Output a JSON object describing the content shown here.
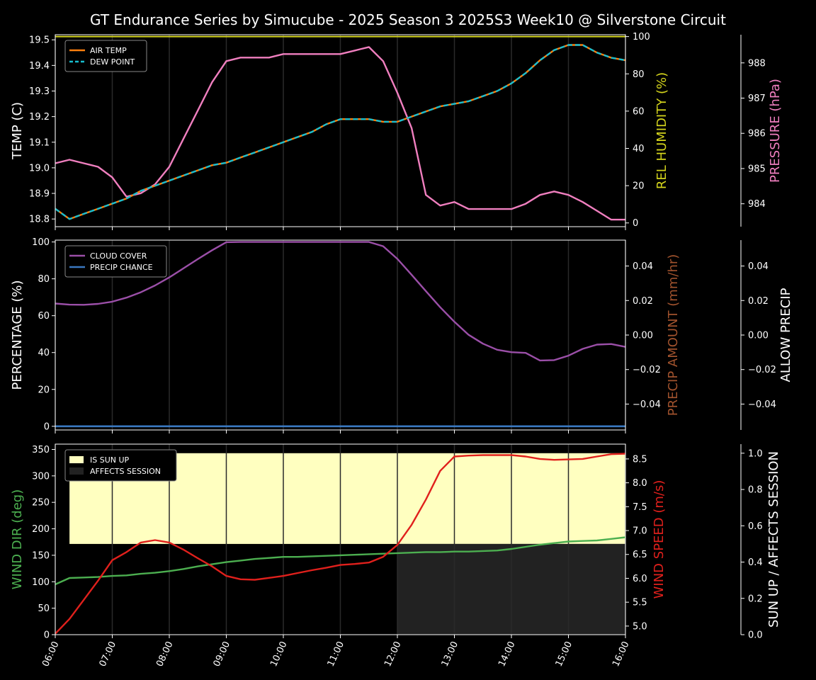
{
  "title": "GT Endurance Series by Simucube - 2025 Season 3 2025S3 Week10 @ Silverstone Circuit",
  "colors": {
    "background": "#000000",
    "foreground": "#ffffff",
    "air_temp": "#ff7f0e",
    "dew_point": "#17becf",
    "humidity": "#d4d41c",
    "pressure": "#f07fbf",
    "cloud": "#9b4fa8",
    "precip_chance": "#3a78c0",
    "precip_amount": "#a0522d",
    "wind_dir": "#4caf50",
    "wind_speed": "#e0201c",
    "sun_up": "#ffffc0",
    "affects_session": "#222222",
    "grid": "#2a2a2a"
  },
  "chart_data": [
    {
      "type": "line",
      "panel": "temperature",
      "x": [
        "06:00",
        "06:15",
        "06:30",
        "06:45",
        "07:00",
        "07:15",
        "07:30",
        "07:45",
        "08:00",
        "08:15",
        "08:30",
        "08:45",
        "09:00",
        "09:15",
        "09:30",
        "09:45",
        "10:00",
        "10:15",
        "10:30",
        "10:45",
        "11:00",
        "11:15",
        "11:30",
        "11:45",
        "12:00",
        "12:15",
        "12:30",
        "12:45",
        "13:00",
        "13:15",
        "13:30",
        "13:45",
        "14:00",
        "14:15",
        "14:30",
        "14:45",
        "15:00",
        "15:15",
        "15:30",
        "15:45",
        "16:00"
      ],
      "x_ticks": [
        "06:00",
        "07:00",
        "08:00",
        "09:00",
        "10:00",
        "11:00",
        "12:00",
        "13:00",
        "14:00",
        "15:00",
        "16:00"
      ],
      "ylabel": "TEMP (C)",
      "ylim": [
        18.77,
        19.52
      ],
      "y_ticks": [
        18.8,
        18.9,
        19.0,
        19.1,
        19.2,
        19.3,
        19.4,
        19.5
      ],
      "y2label": "REL HUMIDITY (%)",
      "y2lim": [
        -2,
        101
      ],
      "y2_ticks": [
        0,
        20,
        40,
        60,
        80,
        100
      ],
      "y3label": "PRESSURE (hPa)",
      "y3lim": [
        983.35,
        988.8
      ],
      "y3_ticks": [
        984,
        985,
        986,
        987,
        988
      ],
      "legend": [
        "AIR TEMP",
        "DEW POINT"
      ],
      "legend_position": "top-left",
      "series": [
        {
          "name": "AIR TEMP",
          "axis": "left",
          "values": [
            18.84,
            18.8,
            18.82,
            18.84,
            18.86,
            18.88,
            18.91,
            18.93,
            18.95,
            18.97,
            18.99,
            19.01,
            19.02,
            19.04,
            19.06,
            19.08,
            19.1,
            19.12,
            19.14,
            19.17,
            19.19,
            19.19,
            19.19,
            19.18,
            19.18,
            19.2,
            19.22,
            19.24,
            19.25,
            19.26,
            19.28,
            19.3,
            19.33,
            19.37,
            19.42,
            19.46,
            19.48,
            19.48,
            19.45,
            19.43,
            19.42
          ]
        },
        {
          "name": "DEW POINT",
          "axis": "left",
          "values": [
            18.84,
            18.8,
            18.82,
            18.84,
            18.86,
            18.88,
            18.91,
            18.93,
            18.95,
            18.97,
            18.99,
            19.01,
            19.02,
            19.04,
            19.06,
            19.08,
            19.1,
            19.12,
            19.14,
            19.17,
            19.19,
            19.19,
            19.19,
            19.18,
            19.18,
            19.2,
            19.22,
            19.24,
            19.25,
            19.26,
            19.28,
            19.3,
            19.33,
            19.37,
            19.42,
            19.46,
            19.48,
            19.48,
            19.45,
            19.43,
            19.42
          ]
        },
        {
          "name": "REL HUMIDITY",
          "axis": "right",
          "values": [
            100,
            100,
            100,
            100,
            100,
            100,
            100,
            100,
            100,
            100,
            100,
            100,
            100,
            100,
            100,
            100,
            100,
            100,
            100,
            100,
            100,
            100,
            100,
            100,
            100,
            100,
            100,
            100,
            100,
            100,
            100,
            100,
            100,
            100,
            100,
            100,
            100,
            100,
            100,
            100,
            100
          ]
        },
        {
          "name": "PRESSURE",
          "axis": "right2",
          "values": [
            985.15,
            985.25,
            985.15,
            985.05,
            984.75,
            984.2,
            984.3,
            984.55,
            985.05,
            985.85,
            986.65,
            987.45,
            988.05,
            988.15,
            988.15,
            988.15,
            988.25,
            988.25,
            988.25,
            988.25,
            988.25,
            988.35,
            988.45,
            988.05,
            987.15,
            986.15,
            984.25,
            983.95,
            984.05,
            983.85,
            983.85,
            983.85,
            983.85,
            984.0,
            984.25,
            984.35,
            984.25,
            984.05,
            983.8,
            983.55,
            983.55
          ]
        }
      ]
    },
    {
      "type": "line",
      "panel": "cloud-precip",
      "ylabel": "PERCENTAGE (%)",
      "ylim": [
        -2,
        101
      ],
      "y_ticks": [
        0,
        20,
        40,
        60,
        80,
        100
      ],
      "y2label": "PRECIP AMOUNT (mm/hr)",
      "y2lim": [
        -0.055,
        0.055
      ],
      "y2_ticks": [
        -0.04,
        -0.02,
        0.0,
        0.02,
        0.04
      ],
      "y3label": "ALLOW PRECIP",
      "y3lim": [
        -0.055,
        0.055
      ],
      "y3_ticks": [
        -0.04,
        -0.02,
        0.0,
        0.02,
        0.04
      ],
      "legend": [
        "CLOUD COVER",
        "PRECIP CHANCE"
      ],
      "legend_position": "top-left",
      "series": [
        {
          "name": "CLOUD COVER",
          "axis": "left",
          "values": [
            66.6,
            66.0,
            65.9,
            66.4,
            67.6,
            69.8,
            72.7,
            76.4,
            80.8,
            85.7,
            90.7,
            95.5,
            99.9,
            100,
            100,
            100,
            100,
            100,
            100,
            100,
            100,
            100,
            100,
            97.7,
            90.8,
            82.2,
            73.3,
            64.6,
            56.7,
            49.6,
            44.8,
            41.5,
            40.2,
            39.8,
            35.7,
            35.9,
            38.3,
            42.0,
            44.3,
            44.6,
            43.1
          ]
        },
        {
          "name": "PRECIP CHANCE",
          "axis": "left",
          "values": [
            0,
            0,
            0,
            0,
            0,
            0,
            0,
            0,
            0,
            0,
            0,
            0,
            0,
            0,
            0,
            0,
            0,
            0,
            0,
            0,
            0,
            0,
            0,
            0,
            0,
            0,
            0,
            0,
            0,
            0,
            0,
            0,
            0,
            0,
            0,
            0,
            0,
            0,
            0,
            0,
            0
          ]
        }
      ]
    },
    {
      "type": "line",
      "panel": "wind",
      "ylabel": "WIND DIR (deg)",
      "ylim": [
        0,
        360
      ],
      "y_ticks": [
        0,
        50,
        100,
        150,
        200,
        250,
        300,
        350
      ],
      "y2label": "WIND SPEED (m/s)",
      "y2lim": [
        4.82,
        8.81
      ],
      "y2_ticks": [
        5.0,
        5.5,
        6.0,
        6.5,
        7.0,
        7.5,
        8.0,
        8.5
      ],
      "y3label": "SUN UP / AFFECTS SESSION",
      "y3lim": [
        0,
        1.05
      ],
      "y3_ticks": [
        0.0,
        0.2,
        0.4,
        0.6,
        0.8,
        1.0
      ],
      "legend": [
        "IS SUN UP",
        "AFFECTS SESSION"
      ],
      "legend_position": "top-left",
      "sun_up": {
        "start": "06:15",
        "end": "16:00",
        "value": 1.0
      },
      "affects_session": {
        "start": "12:00",
        "end": "16:00",
        "value": 0.5
      },
      "series": [
        {
          "name": "WIND DIR",
          "axis": "left",
          "values": [
            95,
            107,
            108,
            109,
            111,
            112,
            115,
            117,
            120,
            124,
            129,
            133,
            137,
            140,
            143,
            145,
            147,
            147,
            148,
            149,
            150,
            151,
            152,
            153,
            154,
            155,
            156,
            156,
            157,
            157,
            158,
            159,
            162,
            166,
            170,
            173,
            176,
            177,
            178,
            181,
            184
          ]
        },
        {
          "name": "WIND SPEED",
          "axis": "right",
          "values": [
            4.84,
            5.15,
            5.55,
            5.95,
            6.38,
            6.55,
            6.75,
            6.8,
            6.75,
            6.6,
            6.42,
            6.25,
            6.05,
            5.98,
            5.97,
            6.01,
            6.05,
            6.11,
            6.17,
            6.22,
            6.28,
            6.3,
            6.33,
            6.45,
            6.7,
            7.12,
            7.65,
            8.25,
            8.55,
            8.57,
            8.58,
            8.58,
            8.58,
            8.55,
            8.5,
            8.48,
            8.49,
            8.5,
            8.55,
            8.6,
            8.61
          ]
        }
      ]
    }
  ]
}
